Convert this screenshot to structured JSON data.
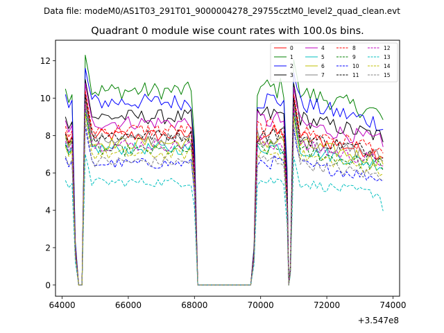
{
  "header": {
    "data_file": "Data file: modeM0/AS1T03_291T01_9000004278_29755cztM0_level2_quad_clean.evt"
  },
  "chart_data": {
    "type": "line",
    "title": "Quadrant 0 module wise count rates with 100.0s bins.",
    "xlabel": "",
    "ylabel": "",
    "x_offset_label": "+3.547e8",
    "xlim": [
      63800,
      74200
    ],
    "ylim": [
      -0.6,
      13.1
    ],
    "x_ticks": [
      64000,
      66000,
      68000,
      70000,
      72000,
      74000
    ],
    "x_tick_labels": [
      "64000",
      "66000",
      "68000",
      "70000",
      "72000",
      "74000"
    ],
    "y_ticks": [
      0,
      2,
      4,
      6,
      8,
      10,
      12
    ],
    "y_tick_labels": [
      "0",
      "2",
      "4",
      "6",
      "8",
      "10",
      "12"
    ],
    "legend_position": "top-right",
    "segments": [
      {
        "start": 64100,
        "end": 68000,
        "step": 100,
        "zero_start": 64450,
        "zero_end": 64650,
        "edge_dip_after_start": 64350,
        "edge_dip_before_end": 64700
      },
      {
        "start": 69800,
        "end": 70800,
        "step": 100
      },
      {
        "start": 70900,
        "end": 73700,
        "step": 100
      }
    ],
    "gaps": [
      {
        "from": 68100,
        "to": 69700,
        "value": 0
      }
    ],
    "series": [
      {
        "name": "0",
        "color": "#ff0000",
        "dash": "solid",
        "mean": 8.0,
        "peak": 10.3,
        "start_value": 8.2
      },
      {
        "name": "1",
        "color": "#008000",
        "dash": "solid",
        "mean": 10.4,
        "peak": 12.3,
        "start_value": 10.5
      },
      {
        "name": "2",
        "color": "#0000ff",
        "dash": "solid",
        "mean": 9.8,
        "peak": 11.6,
        "start_value": 10.2
      },
      {
        "name": "3",
        "color": "#000000",
        "dash": "solid",
        "mean": 9.0,
        "peak": 11.0,
        "start_value": 9.0
      },
      {
        "name": "4",
        "color": "#bf00bf",
        "dash": "solid",
        "mean": 8.7,
        "peak": 10.8,
        "start_value": 8.8
      },
      {
        "name": "5",
        "color": "#00bfbf",
        "dash": "solid",
        "mean": 7.3,
        "peak": 9.5,
        "start_value": 7.6
      },
      {
        "name": "6",
        "color": "#bfbf00",
        "dash": "solid",
        "mean": 7.6,
        "peak": 9.8,
        "start_value": 8.0
      },
      {
        "name": "7",
        "color": "#808080",
        "dash": "solid",
        "mean": 7.8,
        "peak": 10.0,
        "start_value": 7.9
      },
      {
        "name": "8",
        "color": "#ff0000",
        "dash": "dashed",
        "mean": 8.3,
        "peak": 10.4,
        "start_value": 8.5
      },
      {
        "name": "9",
        "color": "#008000",
        "dash": "dashed",
        "mean": 7.2,
        "peak": 9.3,
        "start_value": 7.5
      },
      {
        "name": "10",
        "color": "#0000ff",
        "dash": "dashed",
        "mean": 6.5,
        "peak": 8.5,
        "start_value": 6.8
      },
      {
        "name": "11",
        "color": "#000000",
        "dash": "dashed",
        "mean": 8.0,
        "peak": 10.2,
        "start_value": 8.1
      },
      {
        "name": "12",
        "color": "#bf00bf",
        "dash": "dashed",
        "mean": 7.5,
        "peak": 9.7,
        "start_value": 7.7
      },
      {
        "name": "13",
        "color": "#00bfbf",
        "dash": "dashed",
        "mean": 5.5,
        "peak": 7.0,
        "start_value": 5.6
      },
      {
        "name": "14",
        "color": "#bfbf00",
        "dash": "dashed",
        "mean": 7.0,
        "peak": 9.2,
        "start_value": 7.4
      },
      {
        "name": "15",
        "color": "#808080",
        "dash": "dashed",
        "mean": 6.6,
        "peak": 8.8,
        "start_value": 6.9
      }
    ]
  }
}
